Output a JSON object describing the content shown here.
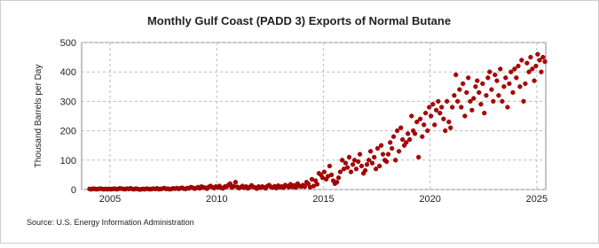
{
  "chart_data": {
    "type": "scatter",
    "title": "Monthly Gulf Coast (PADD 3) Exports of Normal Butane",
    "y_label": "Thousand Barrels per Day",
    "source": "Source: U.S. Energy Information Administration",
    "color": "#b00000",
    "grid": true,
    "xlim": [
      2003.67,
      2025.42
    ],
    "ylim": [
      0,
      500
    ],
    "xticks": [
      2005,
      2010,
      2015,
      2020,
      2025
    ],
    "yticks": [
      0,
      100,
      200,
      300,
      400,
      500
    ],
    "x": [
      2004.04,
      2004.13,
      2004.21,
      2004.29,
      2004.38,
      2004.46,
      2004.54,
      2004.63,
      2004.71,
      2004.79,
      2004.88,
      2004.96,
      2005.04,
      2005.13,
      2005.21,
      2005.29,
      2005.38,
      2005.46,
      2005.54,
      2005.63,
      2005.71,
      2005.79,
      2005.88,
      2005.96,
      2006.04,
      2006.13,
      2006.21,
      2006.29,
      2006.38,
      2006.46,
      2006.54,
      2006.63,
      2006.71,
      2006.79,
      2006.88,
      2006.96,
      2007.04,
      2007.13,
      2007.21,
      2007.29,
      2007.38,
      2007.46,
      2007.54,
      2007.63,
      2007.71,
      2007.79,
      2007.88,
      2007.96,
      2008.04,
      2008.13,
      2008.21,
      2008.29,
      2008.38,
      2008.46,
      2008.54,
      2008.63,
      2008.71,
      2008.79,
      2008.88,
      2008.96,
      2009.04,
      2009.13,
      2009.21,
      2009.29,
      2009.38,
      2009.46,
      2009.54,
      2009.63,
      2009.71,
      2009.79,
      2009.88,
      2009.96,
      2010.04,
      2010.13,
      2010.21,
      2010.29,
      2010.38,
      2010.46,
      2010.54,
      2010.63,
      2010.71,
      2010.79,
      2010.88,
      2010.96,
      2011.04,
      2011.13,
      2011.21,
      2011.29,
      2011.38,
      2011.46,
      2011.54,
      2011.63,
      2011.71,
      2011.79,
      2011.88,
      2011.96,
      2012.04,
      2012.13,
      2012.21,
      2012.29,
      2012.38,
      2012.46,
      2012.54,
      2012.63,
      2012.71,
      2012.79,
      2012.88,
      2012.96,
      2013.04,
      2013.13,
      2013.21,
      2013.29,
      2013.38,
      2013.46,
      2013.54,
      2013.63,
      2013.71,
      2013.79,
      2013.88,
      2013.96,
      2014.04,
      2014.13,
      2014.21,
      2014.29,
      2014.38,
      2014.46,
      2014.54,
      2014.63,
      2014.71,
      2014.79,
      2014.88,
      2014.96,
      2015.04,
      2015.13,
      2015.21,
      2015.29,
      2015.38,
      2015.46,
      2015.54,
      2015.63,
      2015.71,
      2015.79,
      2015.88,
      2015.96,
      2016.04,
      2016.13,
      2016.21,
      2016.29,
      2016.38,
      2016.46,
      2016.54,
      2016.63,
      2016.71,
      2016.79,
      2016.88,
      2016.96,
      2017.04,
      2017.13,
      2017.21,
      2017.29,
      2017.38,
      2017.46,
      2017.54,
      2017.63,
      2017.71,
      2017.79,
      2017.88,
      2017.96,
      2018.04,
      2018.13,
      2018.21,
      2018.29,
      2018.38,
      2018.46,
      2018.54,
      2018.63,
      2018.71,
      2018.79,
      2018.88,
      2018.96,
      2019.04,
      2019.13,
      2019.21,
      2019.29,
      2019.38,
      2019.46,
      2019.54,
      2019.63,
      2019.71,
      2019.79,
      2019.88,
      2019.96,
      2020.04,
      2020.13,
      2020.21,
      2020.29,
      2020.38,
      2020.46,
      2020.54,
      2020.63,
      2020.71,
      2020.79,
      2020.88,
      2020.96,
      2021.04,
      2021.13,
      2021.21,
      2021.29,
      2021.38,
      2021.46,
      2021.54,
      2021.63,
      2021.71,
      2021.79,
      2021.88,
      2021.96,
      2022.04,
      2022.13,
      2022.21,
      2022.29,
      2022.38,
      2022.46,
      2022.54,
      2022.63,
      2022.71,
      2022.79,
      2022.88,
      2022.96,
      2023.04,
      2023.13,
      2023.21,
      2023.29,
      2023.38,
      2023.46,
      2023.54,
      2023.63,
      2023.71,
      2023.79,
      2023.88,
      2023.96,
      2024.04,
      2024.13,
      2024.21,
      2024.29,
      2024.38,
      2024.46,
      2024.54,
      2024.63,
      2024.71,
      2024.79,
      2024.88,
      2024.96,
      2025.04,
      2025.13,
      2025.21,
      2025.29,
      2025.38
    ],
    "values": [
      2,
      1,
      3,
      2,
      1,
      2,
      3,
      2,
      1,
      2,
      1,
      2,
      1,
      2,
      3,
      1,
      2,
      4,
      3,
      2,
      1,
      3,
      2,
      4,
      2,
      1,
      3,
      2,
      0,
      1,
      2,
      1,
      3,
      2,
      1,
      2,
      3,
      2,
      4,
      1,
      2,
      3,
      5,
      2,
      3,
      1,
      2,
      4,
      3,
      5,
      2,
      4,
      6,
      3,
      2,
      5,
      4,
      8,
      6,
      3,
      5,
      8,
      4,
      10,
      7,
      6,
      3,
      9,
      12,
      8,
      5,
      10,
      8,
      12,
      6,
      4,
      10,
      9,
      15,
      20,
      7,
      11,
      25,
      9,
      5,
      8,
      12,
      6,
      10,
      4,
      8,
      14,
      9,
      7,
      3,
      10,
      6,
      10,
      8,
      4,
      12,
      15,
      9,
      7,
      11,
      5,
      13,
      8,
      10,
      6,
      15,
      12,
      8,
      18,
      9,
      14,
      7,
      20,
      12,
      10,
      15,
      10,
      25,
      20,
      8,
      35,
      12,
      30,
      18,
      55,
      50,
      40,
      60,
      35,
      45,
      80,
      50,
      30,
      20,
      25,
      40,
      60,
      100,
      70,
      90,
      75,
      110,
      60,
      85,
      100,
      70,
      95,
      120,
      80,
      55,
      65,
      85,
      100,
      130,
      90,
      110,
      70,
      140,
      80,
      150,
      120,
      100,
      95,
      120,
      160,
      140,
      180,
      100,
      200,
      130,
      210,
      170,
      150,
      160,
      190,
      170,
      250,
      200,
      190,
      230,
      110,
      240,
      180,
      220,
      260,
      200,
      280,
      250,
      290,
      220,
      270,
      300,
      260,
      280,
      240,
      200,
      300,
      230,
      210,
      280,
      320,
      390,
      300,
      340,
      280,
      360,
      250,
      330,
      380,
      300,
      270,
      310,
      350,
      370,
      330,
      290,
      360,
      260,
      320,
      380,
      400,
      340,
      300,
      390,
      370,
      320,
      410,
      300,
      350,
      380,
      280,
      360,
      400,
      330,
      410,
      380,
      420,
      350,
      440,
      300,
      360,
      430,
      400,
      450,
      410,
      370,
      420,
      460,
      440,
      400,
      450,
      435
    ]
  }
}
